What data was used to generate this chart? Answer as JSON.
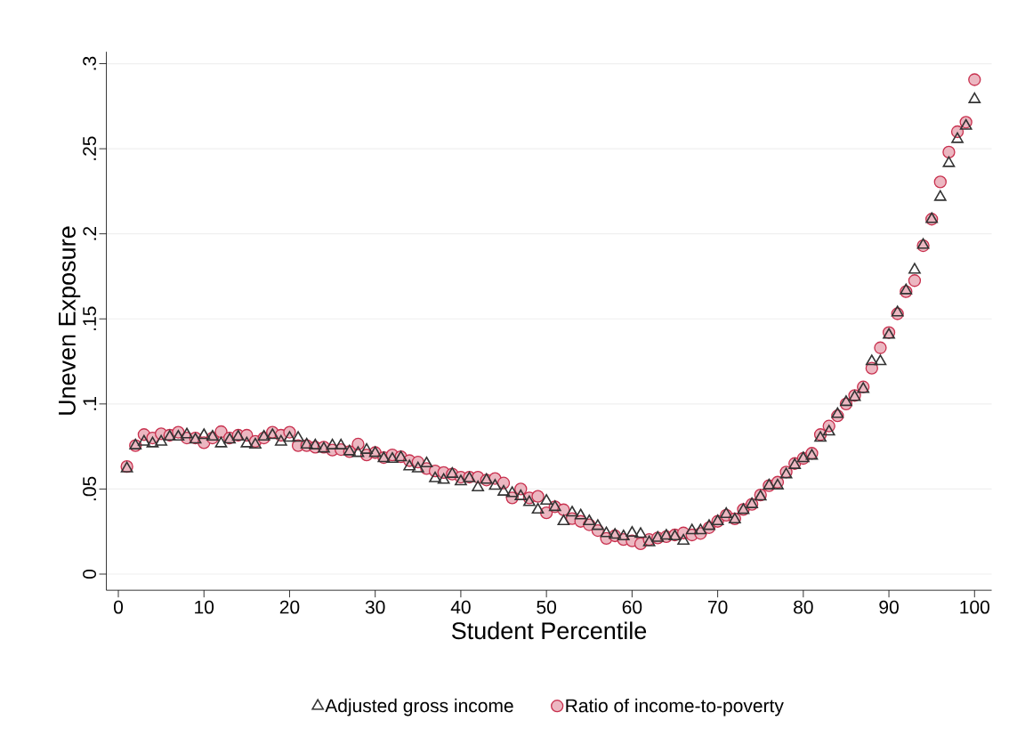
{
  "chart_data": {
    "type": "scatter",
    "xlabel": "Student Percentile",
    "ylabel": "Uneven Exposure",
    "x": [
      1,
      2,
      3,
      4,
      5,
      6,
      7,
      8,
      9,
      10,
      11,
      12,
      13,
      14,
      15,
      16,
      17,
      18,
      19,
      20,
      21,
      22,
      23,
      24,
      25,
      26,
      27,
      28,
      29,
      30,
      31,
      32,
      33,
      34,
      35,
      36,
      37,
      38,
      39,
      40,
      41,
      42,
      43,
      44,
      45,
      46,
      47,
      48,
      49,
      50,
      51,
      52,
      53,
      54,
      55,
      56,
      57,
      58,
      59,
      60,
      61,
      62,
      63,
      64,
      65,
      66,
      67,
      68,
      69,
      70,
      71,
      72,
      73,
      74,
      75,
      76,
      77,
      78,
      79,
      80,
      81,
      82,
      83,
      84,
      85,
      86,
      87,
      88,
      89,
      90,
      91,
      92,
      93,
      94,
      95,
      96,
      97,
      98,
      99,
      100
    ],
    "series": [
      {
        "name": "Adjusted gross income",
        "color": "#333333",
        "marker": "triangle",
        "values": [
          0.062,
          0.0755,
          0.0777,
          0.0767,
          0.0777,
          0.0807,
          0.0807,
          0.082,
          0.079,
          0.0816,
          0.0807,
          0.0767,
          0.079,
          0.0807,
          0.0767,
          0.076,
          0.0807,
          0.0816,
          0.0777,
          0.08,
          0.08,
          0.076,
          0.0755,
          0.0737,
          0.0755,
          0.0755,
          0.072,
          0.0711,
          0.0729,
          0.0711,
          0.068,
          0.0676,
          0.0685,
          0.0632,
          0.062,
          0.065,
          0.0562,
          0.0553,
          0.0588,
          0.0544,
          0.0562,
          0.0509,
          0.0553,
          0.0518,
          0.0483,
          0.0475,
          0.0457,
          0.0422,
          0.0378,
          0.043,
          0.0393,
          0.031,
          0.0361,
          0.0344,
          0.031,
          0.0282,
          0.0239,
          0.023,
          0.0221,
          0.0242,
          0.0235,
          0.0186,
          0.0212,
          0.0225,
          0.0221,
          0.0195,
          0.0256,
          0.0256,
          0.0282,
          0.031,
          0.0352,
          0.032,
          0.0376,
          0.041,
          0.0455,
          0.052,
          0.052,
          0.0585,
          0.064,
          0.068,
          0.0695,
          0.08,
          0.0837,
          0.094,
          0.101,
          0.104,
          0.1087,
          0.125,
          0.125,
          0.1406,
          0.1537,
          0.1667,
          0.1788,
          0.1934,
          0.2086,
          0.2216,
          0.2415,
          0.2556,
          0.2634,
          0.279
        ]
      },
      {
        "name": "Ratio of income-to-poverty",
        "color": "#c8304e",
        "marker": "circle",
        "values": [
          0.0632,
          0.0755,
          0.082,
          0.08,
          0.0825,
          0.0816,
          0.0834,
          0.08,
          0.08,
          0.0772,
          0.08,
          0.0837,
          0.08,
          0.0816,
          0.0816,
          0.078,
          0.08,
          0.0834,
          0.0816,
          0.0834,
          0.0755,
          0.0755,
          0.0746,
          0.0746,
          0.0729,
          0.0732,
          0.072,
          0.0764,
          0.07,
          0.0714,
          0.0685,
          0.07,
          0.069,
          0.0667,
          0.0658,
          0.062,
          0.0606,
          0.0597,
          0.0588,
          0.057,
          0.057,
          0.057,
          0.0553,
          0.0562,
          0.0535,
          0.0448,
          0.05,
          0.0448,
          0.0457,
          0.036,
          0.0396,
          0.0378,
          0.0326,
          0.031,
          0.029,
          0.0256,
          0.021,
          0.0225,
          0.0203,
          0.0195,
          0.0178,
          0.0203,
          0.0212,
          0.022,
          0.023,
          0.0242,
          0.023,
          0.0239,
          0.0273,
          0.031,
          0.0346,
          0.0325,
          0.038,
          0.041,
          0.0465,
          0.052,
          0.054,
          0.06,
          0.065,
          0.068,
          0.071,
          0.082,
          0.087,
          0.093,
          0.1,
          0.105,
          0.11,
          0.121,
          0.133,
          0.142,
          0.153,
          0.166,
          0.1725,
          0.193,
          0.2086,
          0.2305,
          0.248,
          0.26,
          0.2656,
          0.2906
        ]
      }
    ],
    "xlim": [
      -1.4,
      102
    ],
    "ylim": [
      -0.0095,
      0.307
    ],
    "xticks": [
      0,
      10,
      20,
      30,
      40,
      50,
      60,
      70,
      80,
      90,
      100
    ],
    "yticks": [
      {
        "value": 0,
        "label": "0"
      },
      {
        "value": 0.05,
        "label": ".05"
      },
      {
        "value": 0.1,
        "label": ".1"
      },
      {
        "value": 0.15,
        "label": ".15"
      },
      {
        "value": 0.2,
        "label": ".2"
      },
      {
        "value": 0.25,
        "label": ".25"
      },
      {
        "value": 0.3,
        "label": ".3"
      }
    ],
    "grid": "y",
    "legend": "bottom"
  }
}
